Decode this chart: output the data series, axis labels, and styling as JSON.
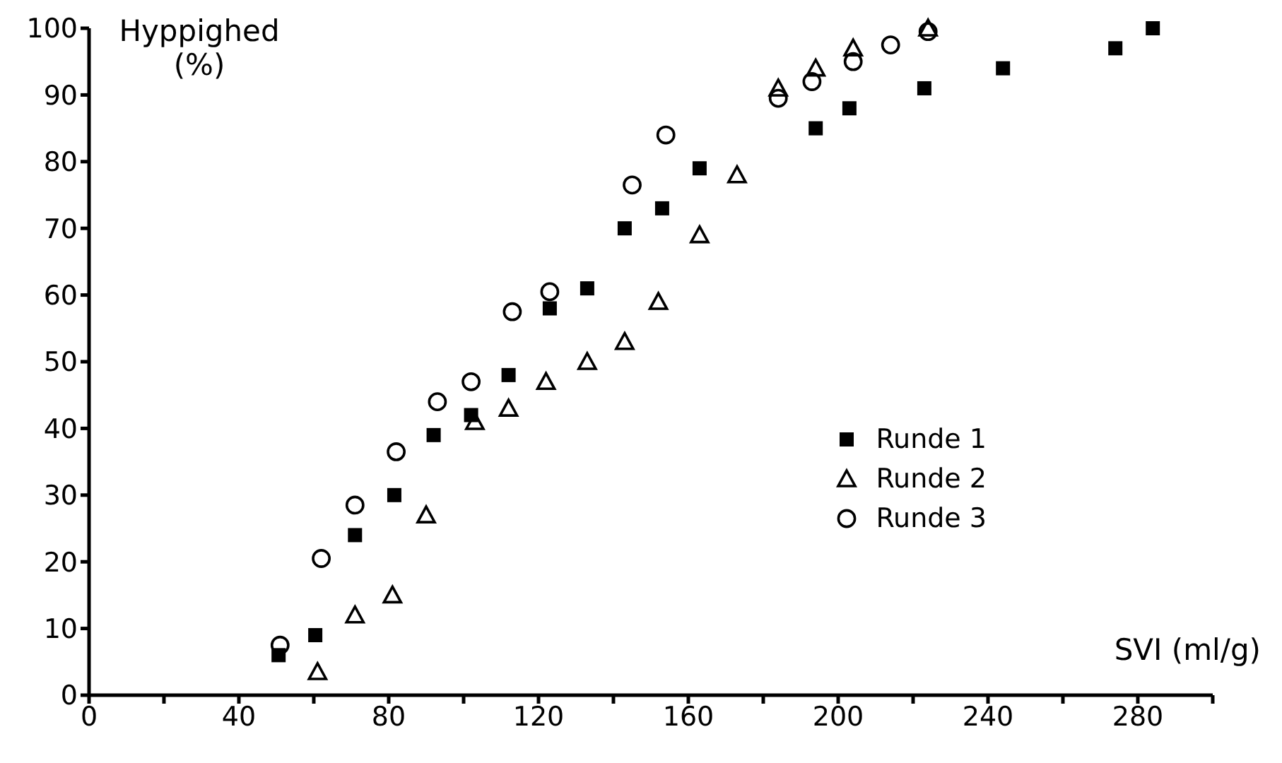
{
  "chart_data": {
    "type": "scatter",
    "xlabel": "SVI (ml/g)",
    "ylabel": "Hyppighed (%)",
    "xlim": [
      0,
      300
    ],
    "xticks": [
      0,
      {
        "value": 20,
        "label": null
      },
      40,
      {
        "value": 60,
        "label": null
      },
      80,
      {
        "value": 100,
        "label": null
      },
      120,
      {
        "value": 140,
        "label": null
      },
      160,
      {
        "value": 180,
        "label": null
      },
      200,
      {
        "value": 220,
        "label": null
      },
      240,
      {
        "value": 260,
        "label": null
      },
      280,
      {
        "value": 300,
        "label": null
      }
    ],
    "ylim": [
      0,
      100
    ],
    "yticks": [
      0,
      10,
      20,
      30,
      40,
      50,
      60,
      70,
      80,
      90,
      100
    ],
    "grid": false,
    "legend": "right",
    "series": [
      {
        "name": "Runde 1",
        "color": "#000000",
        "marker": "square",
        "x": [
          50.6,
          60.4,
          71,
          81.5,
          92,
          102,
          112,
          123,
          133,
          143,
          153,
          163,
          194,
          203,
          223,
          244,
          274,
          284
        ],
        "values": [
          6,
          9,
          24,
          30,
          39,
          42,
          48,
          58,
          61,
          70,
          73,
          79,
          85,
          88,
          91,
          94,
          97,
          100
        ]
      },
      {
        "name": "Runde 2",
        "color": "#000000",
        "marker": "triangle",
        "x": [
          61,
          71,
          81,
          90,
          103,
          112,
          122,
          133,
          143,
          152,
          163,
          173,
          184,
          194,
          204,
          224
        ],
        "values": [
          3.5,
          12,
          15,
          27,
          41,
          43,
          47,
          50,
          53,
          59,
          69,
          78,
          91,
          94,
          97,
          100
        ]
      },
      {
        "name": "Runde 3",
        "color": "#000000",
        "marker": "circle",
        "x": [
          51,
          62,
          71,
          82,
          93,
          102,
          113,
          123,
          145,
          154,
          184,
          193,
          204,
          214,
          224
        ],
        "values": [
          7.5,
          20.5,
          28.5,
          36.5,
          44,
          47,
          57.5,
          60.5,
          76.5,
          84,
          89.5,
          92,
          95,
          97.5,
          99.5
        ]
      }
    ]
  }
}
